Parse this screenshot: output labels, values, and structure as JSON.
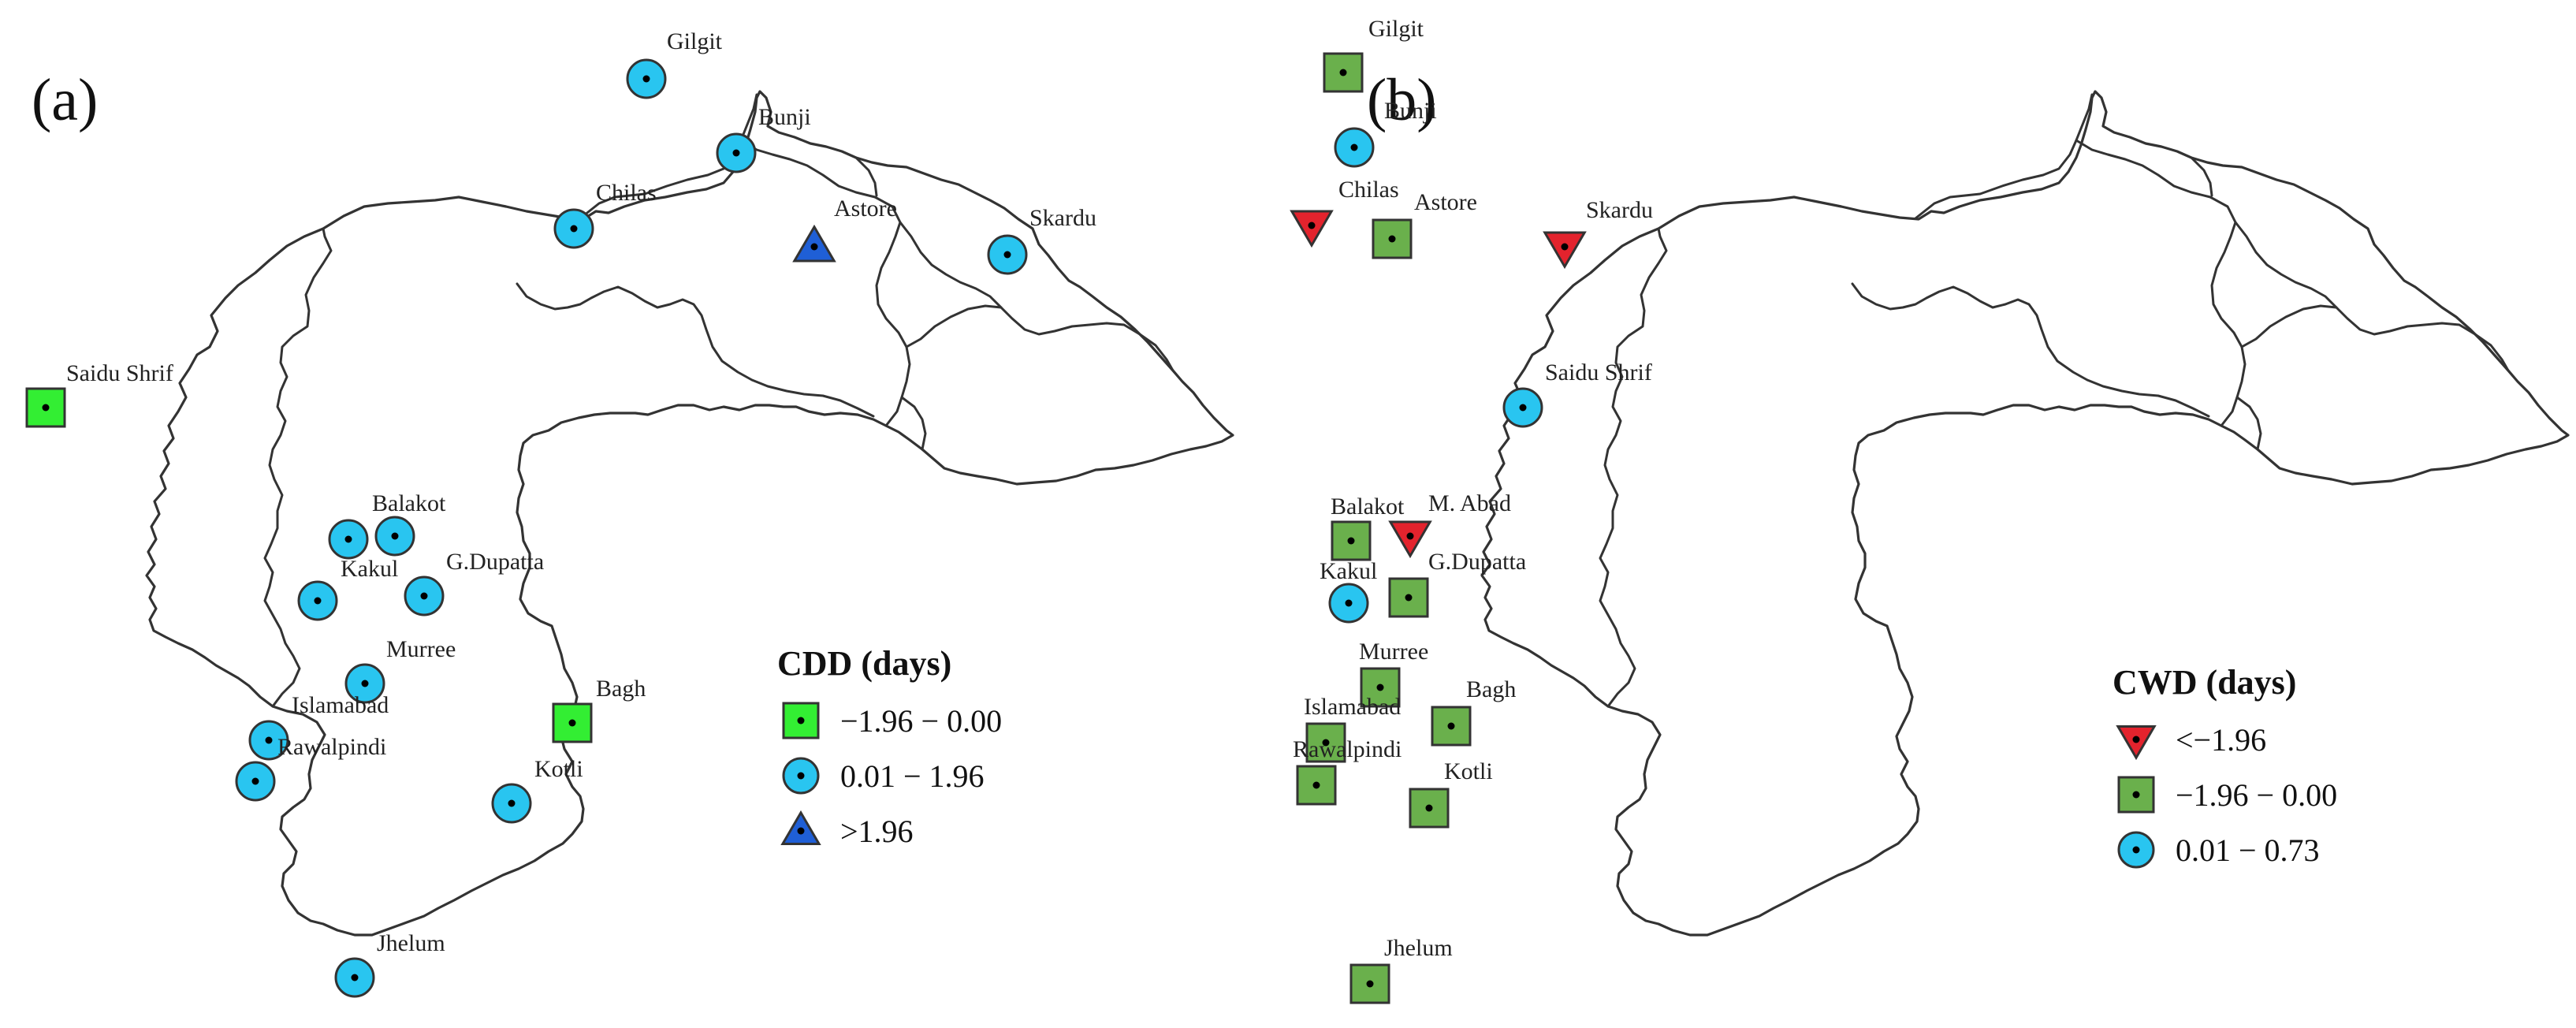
{
  "colors": {
    "green": "#33ee33",
    "dark_green": "#6ab04c",
    "cyan": "#29c5f0",
    "blue": "#1f5fd6",
    "red": "#e3232d",
    "outline": "#333333"
  },
  "panels": [
    {
      "id": "a",
      "tag": "(a)",
      "legend": {
        "title": "CDD (days)",
        "items": [
          {
            "class": "neg",
            "symbol": "square",
            "color": "#33ee33",
            "label": "−1.96 − 0.00"
          },
          {
            "class": "mid",
            "symbol": "circle",
            "color": "#29c5f0",
            "label": "0.01 − 1.96"
          },
          {
            "class": "pos",
            "symbol": "triangle-up",
            "color": "#1f5fd6",
            "label": ">1.96"
          }
        ]
      },
      "stations": [
        {
          "name": "Gilgit",
          "class": "mid"
        },
        {
          "name": "Bunji",
          "class": "mid"
        },
        {
          "name": "Chilas",
          "class": "mid"
        },
        {
          "name": "Astore",
          "class": "pos"
        },
        {
          "name": "Skardu",
          "class": "mid"
        },
        {
          "name": "Saidu Shrif",
          "class": "neg"
        },
        {
          "name": "Balakot",
          "class": "mid"
        },
        {
          "name": "",
          "class": "mid"
        },
        {
          "name": "Kakul",
          "class": "mid"
        },
        {
          "name": "G.Dupatta",
          "class": "mid"
        },
        {
          "name": "Murree",
          "class": "mid"
        },
        {
          "name": "Islamabad",
          "class": "mid"
        },
        {
          "name": "Rawalpindi",
          "class": "mid"
        },
        {
          "name": "Bagh",
          "class": "neg"
        },
        {
          "name": "Kotli",
          "class": "mid"
        },
        {
          "name": "Jhelum",
          "class": "mid"
        }
      ]
    },
    {
      "id": "b",
      "tag": "(b)",
      "legend": {
        "title": "CWD (days)",
        "items": [
          {
            "class": "neg",
            "symbol": "triangle-down",
            "color": "#e3232d",
            "label": "<−1.96"
          },
          {
            "class": "mid",
            "symbol": "square",
            "color": "#6ab04c",
            "label": "−1.96 − 0.00"
          },
          {
            "class": "pos",
            "symbol": "circle",
            "color": "#29c5f0",
            "label": "0.01 − 0.73"
          }
        ]
      },
      "stations": [
        {
          "name": "Gilgit",
          "class": "mid"
        },
        {
          "name": "Bunji",
          "class": "pos"
        },
        {
          "name": "Chilas",
          "class": "neg"
        },
        {
          "name": "Astore",
          "class": "mid"
        },
        {
          "name": "Skardu",
          "class": "neg"
        },
        {
          "name": "Saidu Shrif",
          "class": "pos"
        },
        {
          "name": "Balakot",
          "class": "mid"
        },
        {
          "name": "M. Abad",
          "class": "neg"
        },
        {
          "name": "Kakul",
          "class": "pos"
        },
        {
          "name": "G.Dupatta",
          "class": "mid"
        },
        {
          "name": "Murree",
          "class": "mid"
        },
        {
          "name": "Islamabad",
          "class": "mid"
        },
        {
          "name": "Rawalpindi",
          "class": "mid"
        },
        {
          "name": "Bagh",
          "class": "mid"
        },
        {
          "name": "Kotli",
          "class": "mid"
        },
        {
          "name": "Jhelum",
          "class": "mid"
        }
      ]
    }
  ]
}
